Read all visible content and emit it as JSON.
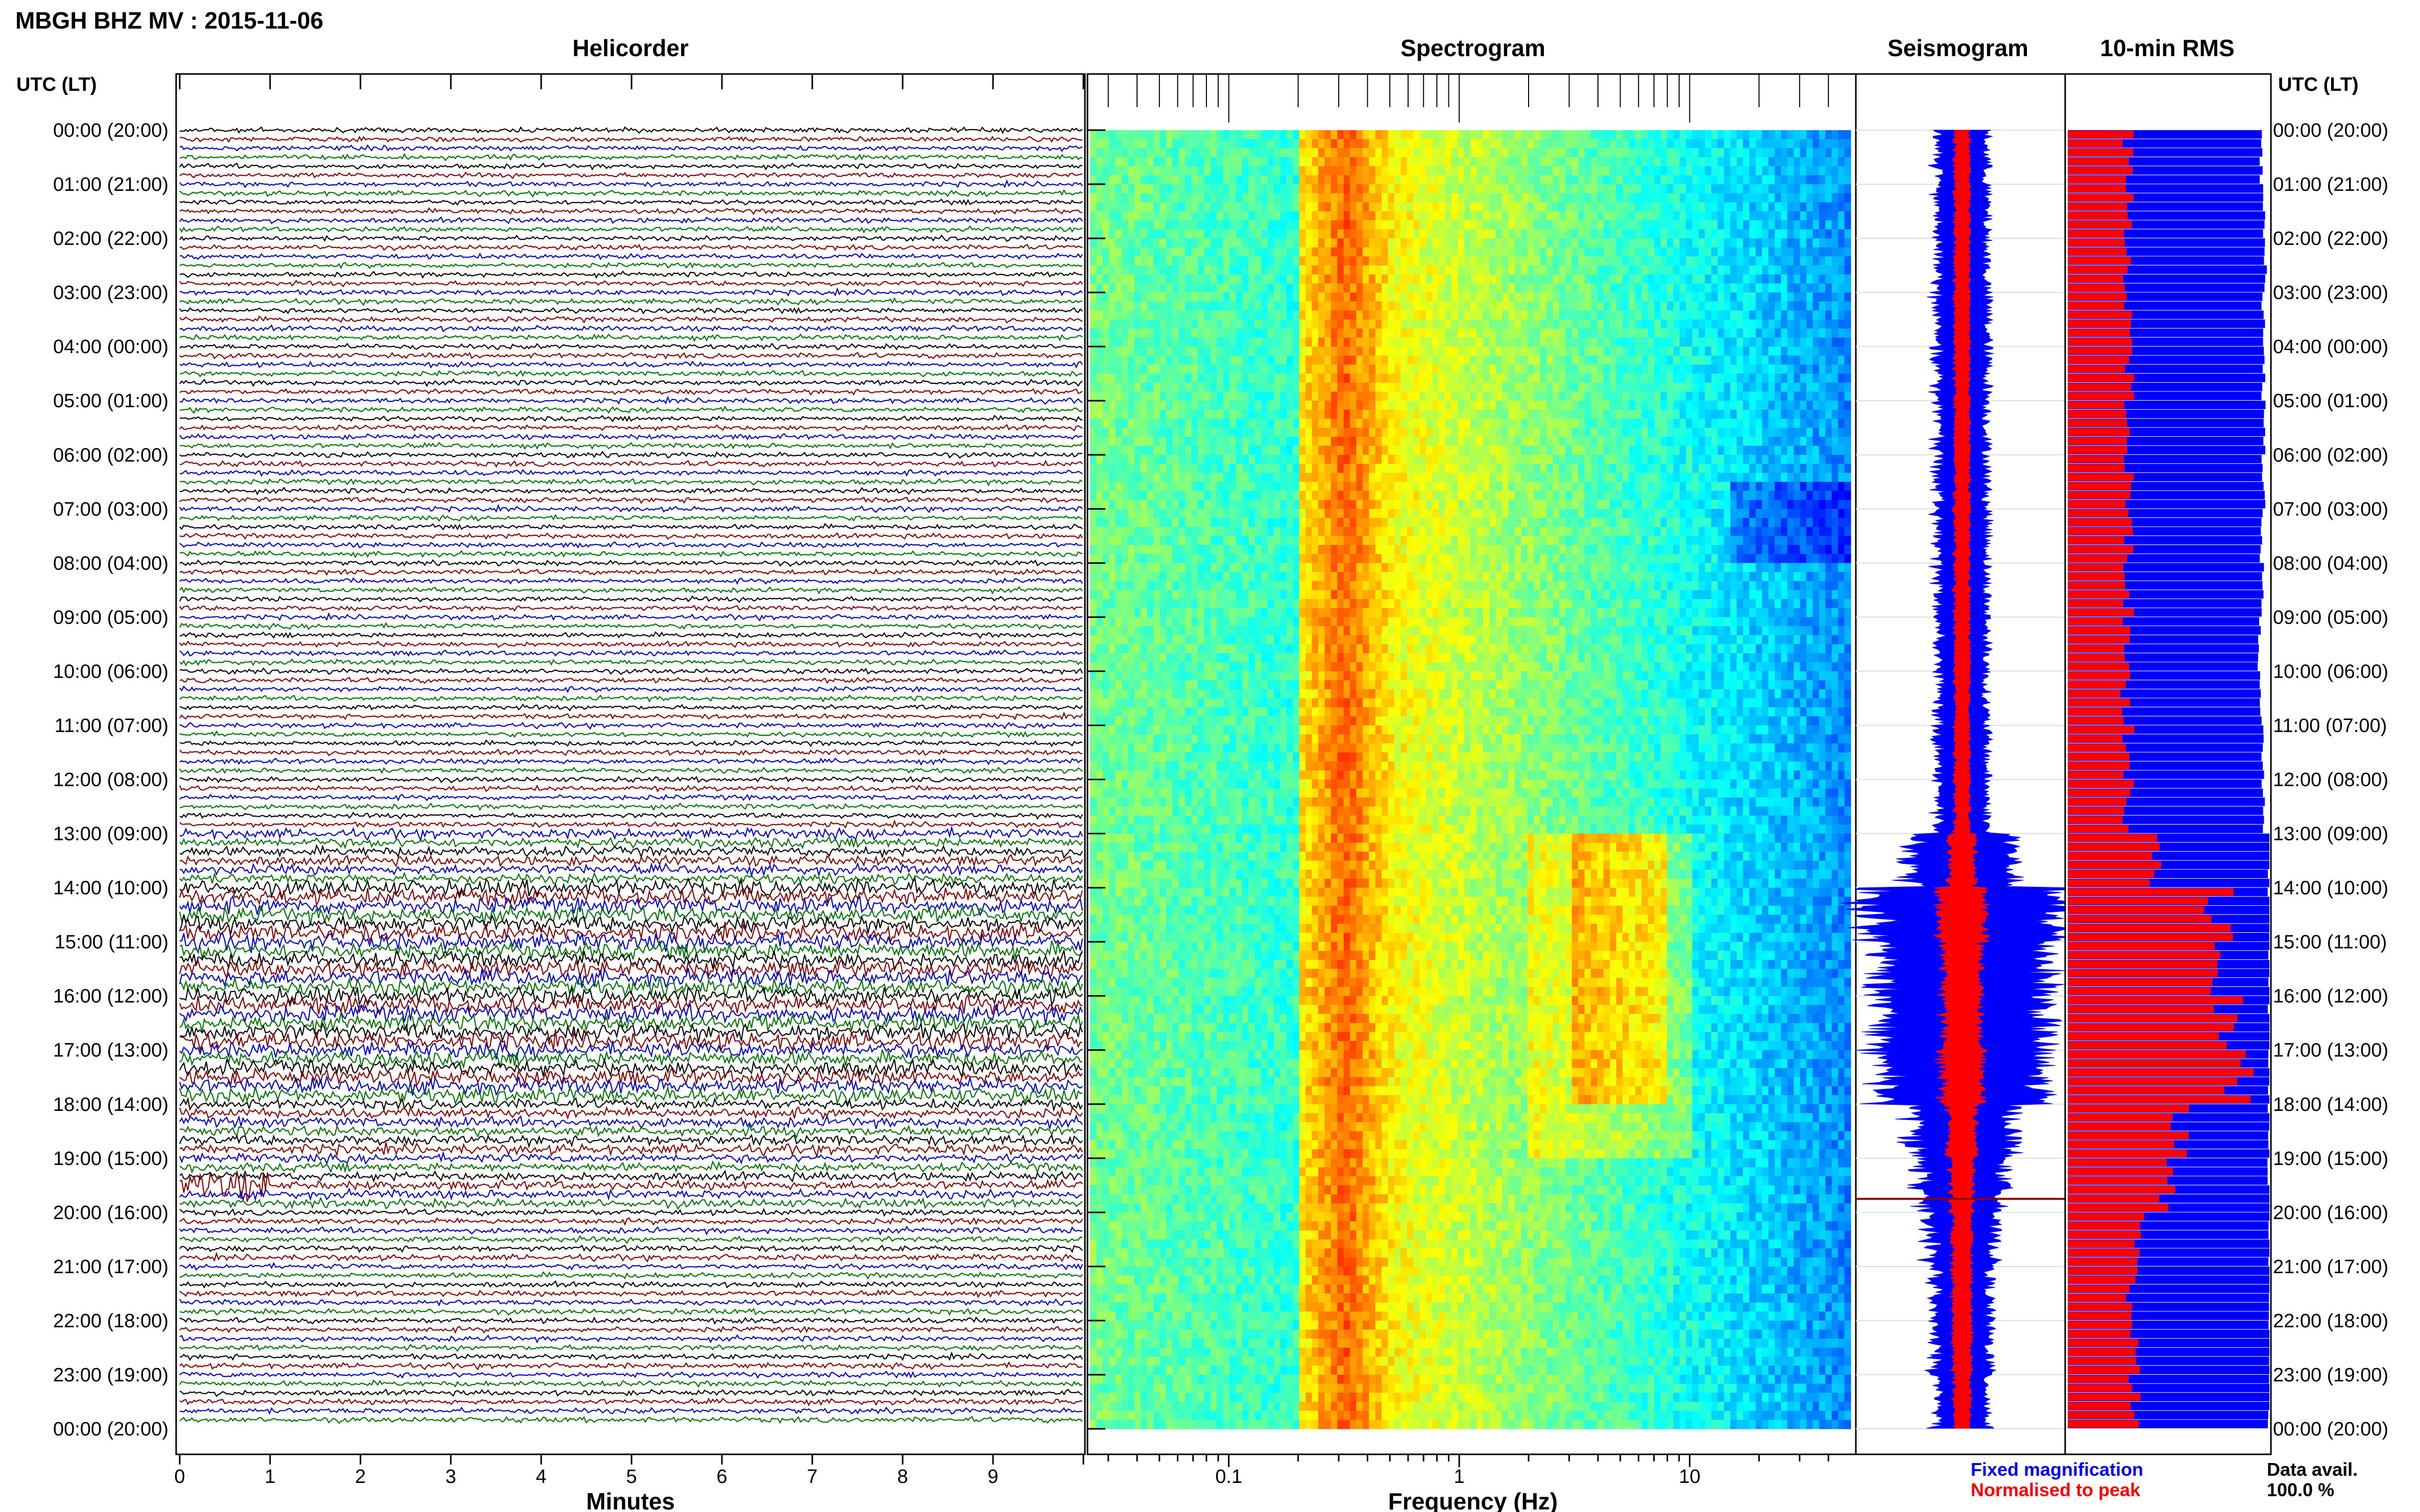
{
  "page": {
    "title": "MBGH BHZ MV : 2015-11-06",
    "panel_titles": {
      "helicorder": "Helicorder",
      "spectrogram": "Spectrogram",
      "seismogram": "Seismogram",
      "rms": "10-min RMS"
    },
    "axis_header_left": "UTC (LT)",
    "axis_header_right": "UTC (LT)",
    "time_labels": [
      "00:00 (20:00)",
      "01:00 (21:00)",
      "02:00 (22:00)",
      "03:00 (23:00)",
      "04:00 (00:00)",
      "05:00 (01:00)",
      "06:00 (02:00)",
      "07:00 (03:00)",
      "08:00 (04:00)",
      "09:00 (05:00)",
      "10:00 (06:00)",
      "11:00 (07:00)",
      "12:00 (08:00)",
      "13:00 (09:00)",
      "14:00 (10:00)",
      "15:00 (11:00)",
      "16:00 (12:00)",
      "17:00 (13:00)",
      "18:00 (14:00)",
      "19:00 (15:00)",
      "20:00 (16:00)",
      "21:00 (17:00)",
      "22:00 (18:00)",
      "23:00 (19:00)",
      "00:00 (20:00)"
    ],
    "legend": {
      "fixed": "Fixed magnification",
      "normalised": "Normalised to peak",
      "avail_label": "Data avail.",
      "avail_value": "100.0 %"
    },
    "colors": {
      "trace": [
        "#000000",
        "#8b0000",
        "#0000cc",
        "#007700"
      ],
      "fixed": "#0000ff",
      "normalised": "#ff0000"
    }
  },
  "chart_data": [
    {
      "type": "line",
      "panel": "helicorder",
      "xlabel": "Minutes",
      "x_ticks": [
        "0",
        "1",
        "2",
        "3",
        "4",
        "5",
        "6",
        "7",
        "8",
        "9"
      ],
      "xlim": [
        0,
        10
      ],
      "lines_per_hour": 6,
      "hours": 24,
      "hourly_amplitude": [
        1.0,
        1.0,
        1.0,
        1.05,
        1.05,
        1.0,
        1.05,
        1.0,
        1.0,
        1.0,
        1.0,
        1.0,
        1.05,
        2.0,
        3.3,
        3.3,
        3.5,
        3.1,
        2.1,
        1.8,
        1.2,
        1.1,
        1.1,
        1.1
      ]
    },
    {
      "type": "heatmap",
      "panel": "spectrogram",
      "xlabel": "Frequency (Hz)",
      "x_ticks": [
        "0.1",
        "1",
        "10"
      ],
      "x_scale": "log",
      "xlim": [
        0.025,
        50
      ],
      "ylabel": "UTC (LT)",
      "colormap": "jet",
      "features": {
        "microseism_peak_hz": [
          0.22,
          0.5
        ],
        "tremor_band_hz": [
          3,
          8
        ],
        "tremor_hours": [
          13,
          18
        ]
      }
    },
    {
      "type": "line",
      "panel": "seismogram",
      "series": [
        {
          "name": "Fixed magnification",
          "hourly_amplitude": [
            0.27,
            0.27,
            0.27,
            0.28,
            0.28,
            0.27,
            0.27,
            0.28,
            0.27,
            0.27,
            0.26,
            0.27,
            0.27,
            0.55,
            1.0,
            0.92,
            0.88,
            0.84,
            0.55,
            0.45,
            0.35,
            0.3,
            0.3,
            0.28
          ]
        },
        {
          "name": "Normalised to peak",
          "hourly_amplitude": [
            0.08,
            0.08,
            0.08,
            0.08,
            0.08,
            0.08,
            0.08,
            0.08,
            0.08,
            0.08,
            0.08,
            0.08,
            0.08,
            0.14,
            0.25,
            0.2,
            0.2,
            0.22,
            0.15,
            0.12,
            0.1,
            0.1,
            0.1,
            0.09
          ]
        }
      ]
    },
    {
      "type": "bar",
      "panel": "rms",
      "interval_minutes": 10,
      "series": [
        {
          "name": "Fixed magnification",
          "hourly_value": [
            0.96,
            0.97,
            0.98,
            0.97,
            0.97,
            0.98,
            0.97,
            0.96,
            0.97,
            0.95,
            0.96,
            0.97,
            0.97,
            1.0,
            1.0,
            1.0,
            1.0,
            1.0,
            1.0,
            1.0,
            1.0,
            1.0,
            1.0,
            1.0
          ]
        },
        {
          "name": "Normalised to peak",
          "hourly_value": [
            0.3,
            0.3,
            0.3,
            0.31,
            0.3,
            0.3,
            0.3,
            0.3,
            0.3,
            0.3,
            0.29,
            0.3,
            0.3,
            0.45,
            0.75,
            0.7,
            0.8,
            0.85,
            0.55,
            0.5,
            0.35,
            0.32,
            0.33,
            0.33
          ]
        }
      ],
      "footer": "Data avail. 100.0 %"
    }
  ]
}
